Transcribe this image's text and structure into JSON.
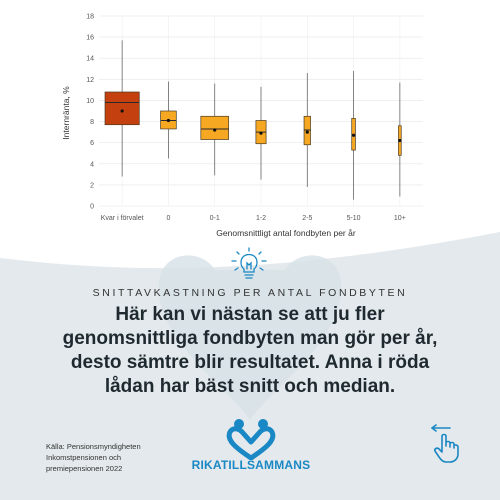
{
  "chart_data": {
    "type": "boxplot",
    "title": "",
    "xlabel": "Genomsnittligt antal fondbyten per år",
    "ylabel": "Internränta, %",
    "ylim": [
      0,
      18
    ],
    "yticks": [
      0,
      2,
      4,
      6,
      8,
      10,
      12,
      14,
      16,
      18
    ],
    "grid": true,
    "categories": [
      "Kvar i förvalet",
      "0",
      "0-1",
      "1-2",
      "2-5",
      "5-10",
      "10+"
    ],
    "boxes": [
      {
        "category": "Kvar i förvalet",
        "whisker_low": 2.8,
        "q1": 7.7,
        "median": 9.8,
        "q3": 10.8,
        "whisker_high": 15.7,
        "mean": 9.0,
        "color": "#c4410f"
      },
      {
        "category": "0",
        "whisker_low": 4.5,
        "q1": 7.3,
        "median": 8.1,
        "q3": 9.0,
        "whisker_high": 11.8,
        "mean": 8.1,
        "color": "#f7a823"
      },
      {
        "category": "0-1",
        "whisker_low": 2.9,
        "q1": 6.3,
        "median": 7.3,
        "q3": 8.5,
        "whisker_high": 11.6,
        "mean": 7.2,
        "color": "#f7a823"
      },
      {
        "category": "1-2",
        "whisker_low": 2.5,
        "q1": 5.9,
        "median": 7.0,
        "q3": 8.1,
        "whisker_high": 11.3,
        "mean": 6.9,
        "color": "#f7a823"
      },
      {
        "category": "2-5",
        "whisker_low": 1.8,
        "q1": 5.8,
        "median": 7.2,
        "q3": 8.5,
        "whisker_high": 12.6,
        "mean": 7.0,
        "color": "#f7a823"
      },
      {
        "category": "5-10",
        "whisker_low": 0.6,
        "q1": 5.3,
        "median": 6.7,
        "q3": 8.3,
        "whisker_high": 12.8,
        "mean": 6.7,
        "color": "#f7a823"
      },
      {
        "category": "10+",
        "whisker_low": 0.9,
        "q1": 4.8,
        "median": 6.3,
        "q3": 7.6,
        "whisker_high": 11.7,
        "mean": 6.2,
        "color": "#f7a823"
      }
    ]
  },
  "subtitle": "SNITTAVKASTNING PER ANTAL FONDBYTEN",
  "headline": "Här kan vi nästan se att ju fler genomsnittliga fondbyten man gör per år, desto sämtre blir resultatet. Anna i röda lådan har bäst snitt och median.",
  "source_lines": [
    "Källa: Pensionsmyndigheten",
    "Inkomstpensionen och",
    "premiepensionen 2022"
  ],
  "logo_text": "RIKATILLSAMMANS",
  "colors": {
    "background": "#e3e9ec",
    "brand_blue": "#1a88c4",
    "highlight_box": "#c4410f",
    "box": "#f7a823"
  },
  "icons": {
    "lightbulb": "lightbulb-icon",
    "swipe": "swipe-hand-icon",
    "logo": "hands-heart-logo"
  }
}
